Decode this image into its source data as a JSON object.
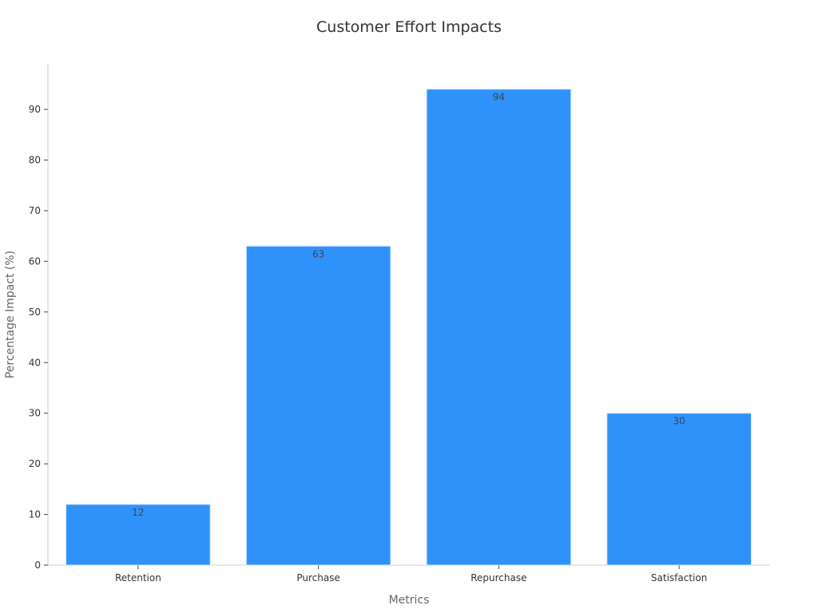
{
  "chart_data": {
    "type": "bar",
    "title": "Customer Effort Impacts",
    "xlabel": "Metrics",
    "ylabel": "Percentage Impact (%)",
    "categories": [
      "Retention",
      "Purchase",
      "Repurchase",
      "Satisfaction"
    ],
    "values": [
      12,
      63,
      94,
      30
    ],
    "ylim": [
      0,
      99
    ],
    "yticks": [
      0,
      10,
      20,
      30,
      40,
      50,
      60,
      70,
      80,
      90
    ],
    "grid": false,
    "bar_color": "#2f92fa",
    "bar_edge_color": "#d0e6ff"
  }
}
